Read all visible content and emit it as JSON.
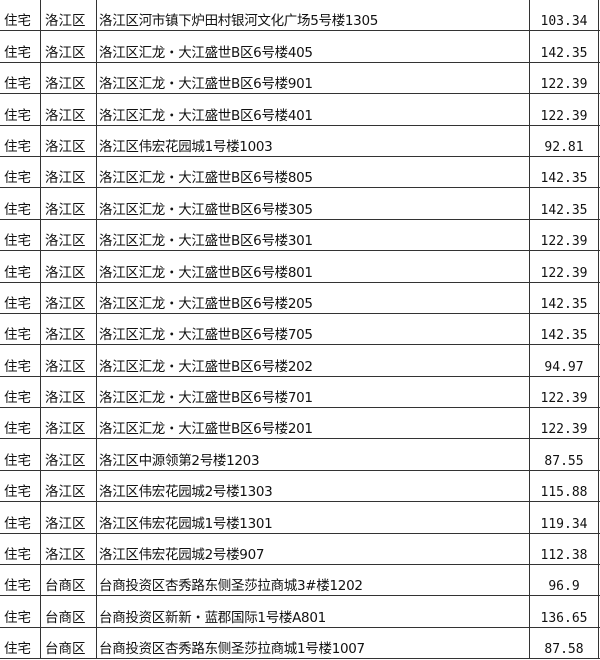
{
  "rows": [
    {
      "type": "住宅",
      "district": "洛江区",
      "address": "洛江区河市镇下炉田村银河文化广场5号楼1305",
      "area": "103.34"
    },
    {
      "type": "住宅",
      "district": "洛江区",
      "address": "洛江区汇龙・大江盛世B区6号楼405",
      "area": "142.35"
    },
    {
      "type": "住宅",
      "district": "洛江区",
      "address": "洛江区汇龙・大江盛世B区6号楼901",
      "area": "122.39"
    },
    {
      "type": "住宅",
      "district": "洛江区",
      "address": "洛江区汇龙・大江盛世B区6号楼401",
      "area": "122.39"
    },
    {
      "type": "住宅",
      "district": "洛江区",
      "address": "洛江区伟宏花园城1号楼1003",
      "area": "92.81"
    },
    {
      "type": "住宅",
      "district": "洛江区",
      "address": "洛江区汇龙・大江盛世B区6号楼805",
      "area": "142.35"
    },
    {
      "type": "住宅",
      "district": "洛江区",
      "address": "洛江区汇龙・大江盛世B区6号楼305",
      "area": "142.35"
    },
    {
      "type": "住宅",
      "district": "洛江区",
      "address": "洛江区汇龙・大江盛世B区6号楼301",
      "area": "122.39"
    },
    {
      "type": "住宅",
      "district": "洛江区",
      "address": "洛江区汇龙・大江盛世B区6号楼801",
      "area": "122.39"
    },
    {
      "type": "住宅",
      "district": "洛江区",
      "address": "洛江区汇龙・大江盛世B区6号楼205",
      "area": "142.35"
    },
    {
      "type": "住宅",
      "district": "洛江区",
      "address": "洛江区汇龙・大江盛世B区6号楼705",
      "area": "142.35"
    },
    {
      "type": "住宅",
      "district": "洛江区",
      "address": "洛江区汇龙・大江盛世B区6号楼202",
      "area": "94.97"
    },
    {
      "type": "住宅",
      "district": "洛江区",
      "address": "洛江区汇龙・大江盛世B区6号楼701",
      "area": "122.39"
    },
    {
      "type": "住宅",
      "district": "洛江区",
      "address": "洛江区汇龙・大江盛世B区6号楼201",
      "area": "122.39"
    },
    {
      "type": "住宅",
      "district": "洛江区",
      "address": "洛江区中源领第2号楼1203",
      "area": "87.55"
    },
    {
      "type": "住宅",
      "district": "洛江区",
      "address": "洛江区伟宏花园城2号楼1303",
      "area": "115.88"
    },
    {
      "type": "住宅",
      "district": "洛江区",
      "address": "洛江区伟宏花园城1号楼1301",
      "area": "119.34"
    },
    {
      "type": "住宅",
      "district": "洛江区",
      "address": "洛江区伟宏花园城2号楼907",
      "area": "112.38"
    },
    {
      "type": "住宅",
      "district": "台商区",
      "address": "台商投资区杏秀路东侧圣莎拉商城3#楼1202",
      "area": "96.9"
    },
    {
      "type": "住宅",
      "district": "台商区",
      "address": "台商投资区新新・蓝郡国际1号楼A801",
      "area": "136.65"
    },
    {
      "type": "住宅",
      "district": "台商区",
      "address": "台商投资区杏秀路东侧圣莎拉商城1号楼1007",
      "area": "87.58"
    }
  ]
}
